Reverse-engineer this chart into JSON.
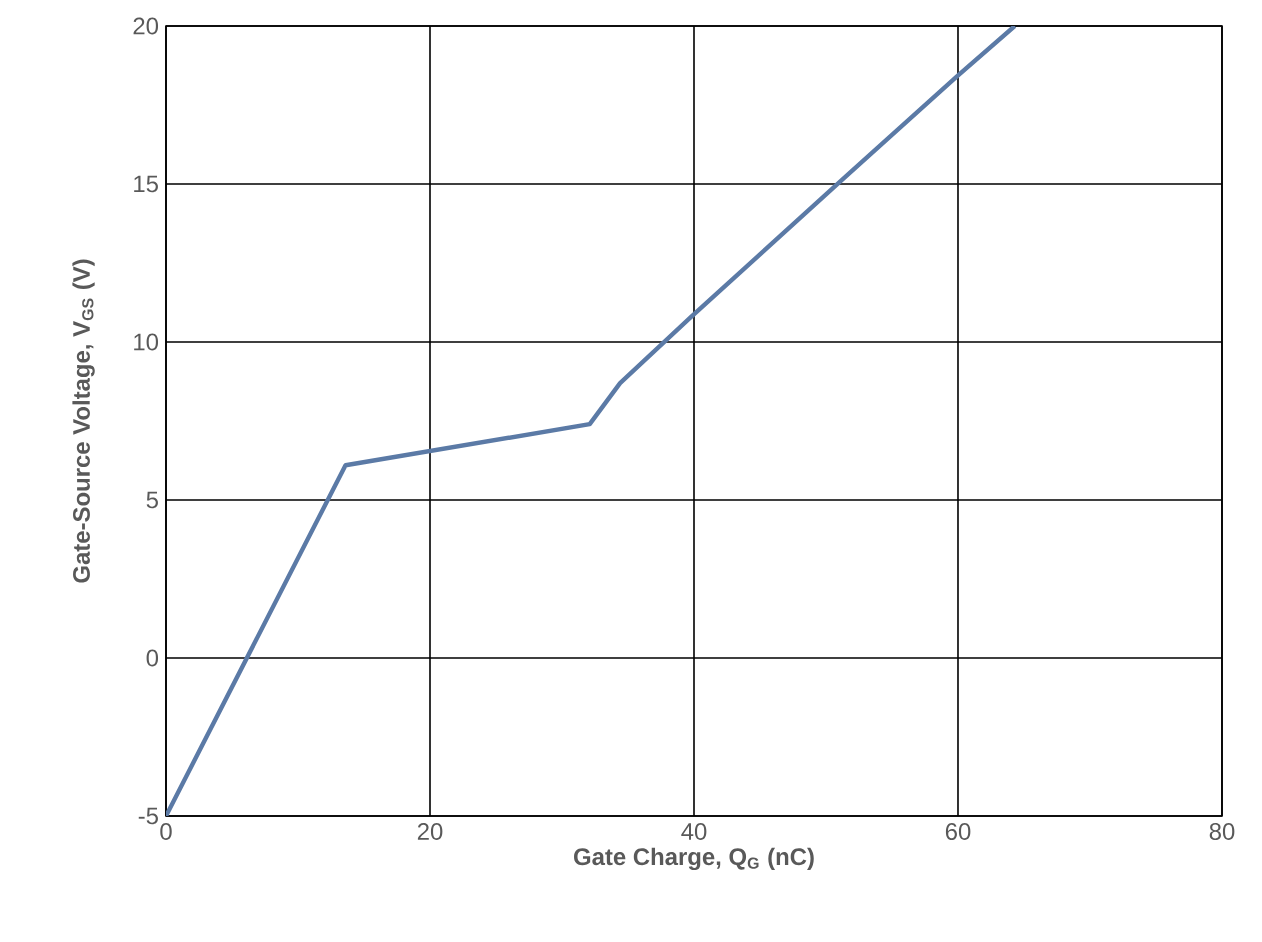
{
  "chart_data": {
    "type": "line",
    "xlabel": "Gate Charge,  Q$_{G}$ (nC)",
    "ylabel": "Gate-Source Voltage, V$_{GS}$ (V)",
    "x": [
      0,
      13.6,
      32.1,
      34.4,
      39.8,
      51.4,
      59.9,
      64.3
    ],
    "series": [
      {
        "color": "#5b7aa6",
        "values": [
          -5,
          6.1,
          7.4,
          8.7,
          10.8,
          15.2,
          18.4,
          20
        ]
      }
    ],
    "xlim": [
      0,
      80
    ],
    "ylim": [
      -5,
      20
    ],
    "xticks": [
      0,
      20,
      40,
      60,
      80
    ],
    "yticks": [
      -5,
      0,
      5,
      10,
      15,
      20
    ],
    "grid": true,
    "marker": "none",
    "line_style": "solid"
  }
}
